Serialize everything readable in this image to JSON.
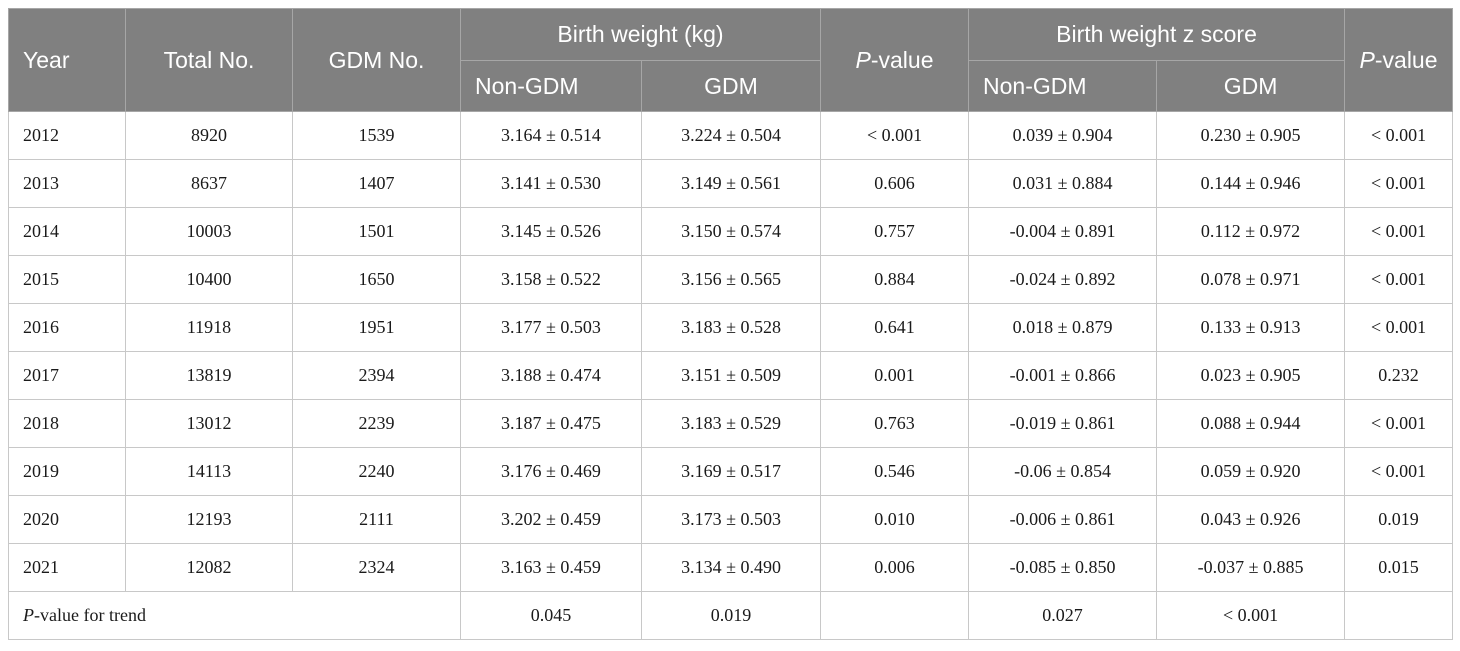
{
  "header": {
    "year": "Year",
    "total_no": "Total No.",
    "gdm_no": "GDM No.",
    "birth_weight_group": "Birth weight (kg)",
    "p_italic": "P",
    "p_suffix": "-value",
    "birth_weight_z_group": "Birth weight z score",
    "non_gdm": "Non-GDM",
    "gdm": "GDM"
  },
  "rows": [
    {
      "year": "2012",
      "total": "8920",
      "gdm_no": "1539",
      "bw_non": "3.164 ± 0.514",
      "bw_gdm": "3.224 ± 0.504",
      "p1": "< 0.001",
      "z_non": "0.039 ± 0.904",
      "z_gdm": "0.230 ± 0.905",
      "p2": "< 0.001"
    },
    {
      "year": "2013",
      "total": "8637",
      "gdm_no": "1407",
      "bw_non": "3.141 ± 0.530",
      "bw_gdm": "3.149 ± 0.561",
      "p1": "0.606",
      "z_non": "0.031 ± 0.884",
      "z_gdm": "0.144 ± 0.946",
      "p2": "< 0.001"
    },
    {
      "year": "2014",
      "total": "10003",
      "gdm_no": "1501",
      "bw_non": "3.145 ± 0.526",
      "bw_gdm": "3.150 ± 0.574",
      "p1": "0.757",
      "z_non": "-0.004 ± 0.891",
      "z_gdm": "0.112 ± 0.972",
      "p2": "< 0.001"
    },
    {
      "year": "2015",
      "total": "10400",
      "gdm_no": "1650",
      "bw_non": "3.158 ± 0.522",
      "bw_gdm": "3.156 ± 0.565",
      "p1": "0.884",
      "z_non": "-0.024 ± 0.892",
      "z_gdm": "0.078 ± 0.971",
      "p2": "< 0.001"
    },
    {
      "year": "2016",
      "total": "11918",
      "gdm_no": "1951",
      "bw_non": "3.177 ± 0.503",
      "bw_gdm": "3.183 ± 0.528",
      "p1": "0.641",
      "z_non": "0.018 ± 0.879",
      "z_gdm": "0.133 ± 0.913",
      "p2": "< 0.001"
    },
    {
      "year": "2017",
      "total": "13819",
      "gdm_no": "2394",
      "bw_non": "3.188 ± 0.474",
      "bw_gdm": "3.151 ± 0.509",
      "p1": "0.001",
      "z_non": "-0.001 ± 0.866",
      "z_gdm": "0.023 ± 0.905",
      "p2": "0.232"
    },
    {
      "year": "2018",
      "total": "13012",
      "gdm_no": "2239",
      "bw_non": "3.187 ± 0.475",
      "bw_gdm": "3.183 ± 0.529",
      "p1": "0.763",
      "z_non": "-0.019 ± 0.861",
      "z_gdm": "0.088 ± 0.944",
      "p2": "< 0.001"
    },
    {
      "year": "2019",
      "total": "14113",
      "gdm_no": "2240",
      "bw_non": "3.176 ± 0.469",
      "bw_gdm": "3.169 ± 0.517",
      "p1": "0.546",
      "z_non": "-0.06 ± 0.854",
      "z_gdm": "0.059 ± 0.920",
      "p2": "< 0.001"
    },
    {
      "year": "2020",
      "total": "12193",
      "gdm_no": "2111",
      "bw_non": "3.202 ± 0.459",
      "bw_gdm": "3.173 ± 0.503",
      "p1": "0.010",
      "z_non": "-0.006 ± 0.861",
      "z_gdm": "0.043 ± 0.926",
      "p2": "0.019"
    },
    {
      "year": "2021",
      "total": "12082",
      "gdm_no": "2324",
      "bw_non": "3.163 ± 0.459",
      "bw_gdm": "3.134 ± 0.490",
      "p1": "0.006",
      "z_non": "-0.085 ± 0.850",
      "z_gdm": "-0.037 ± 0.885",
      "p2": "0.015"
    }
  ],
  "trend": {
    "label_italic": "P",
    "label_suffix": "-value for trend",
    "bw_non": "0.045",
    "bw_gdm": "0.019",
    "z_non": "0.027",
    "z_gdm": "< 0.001"
  }
}
